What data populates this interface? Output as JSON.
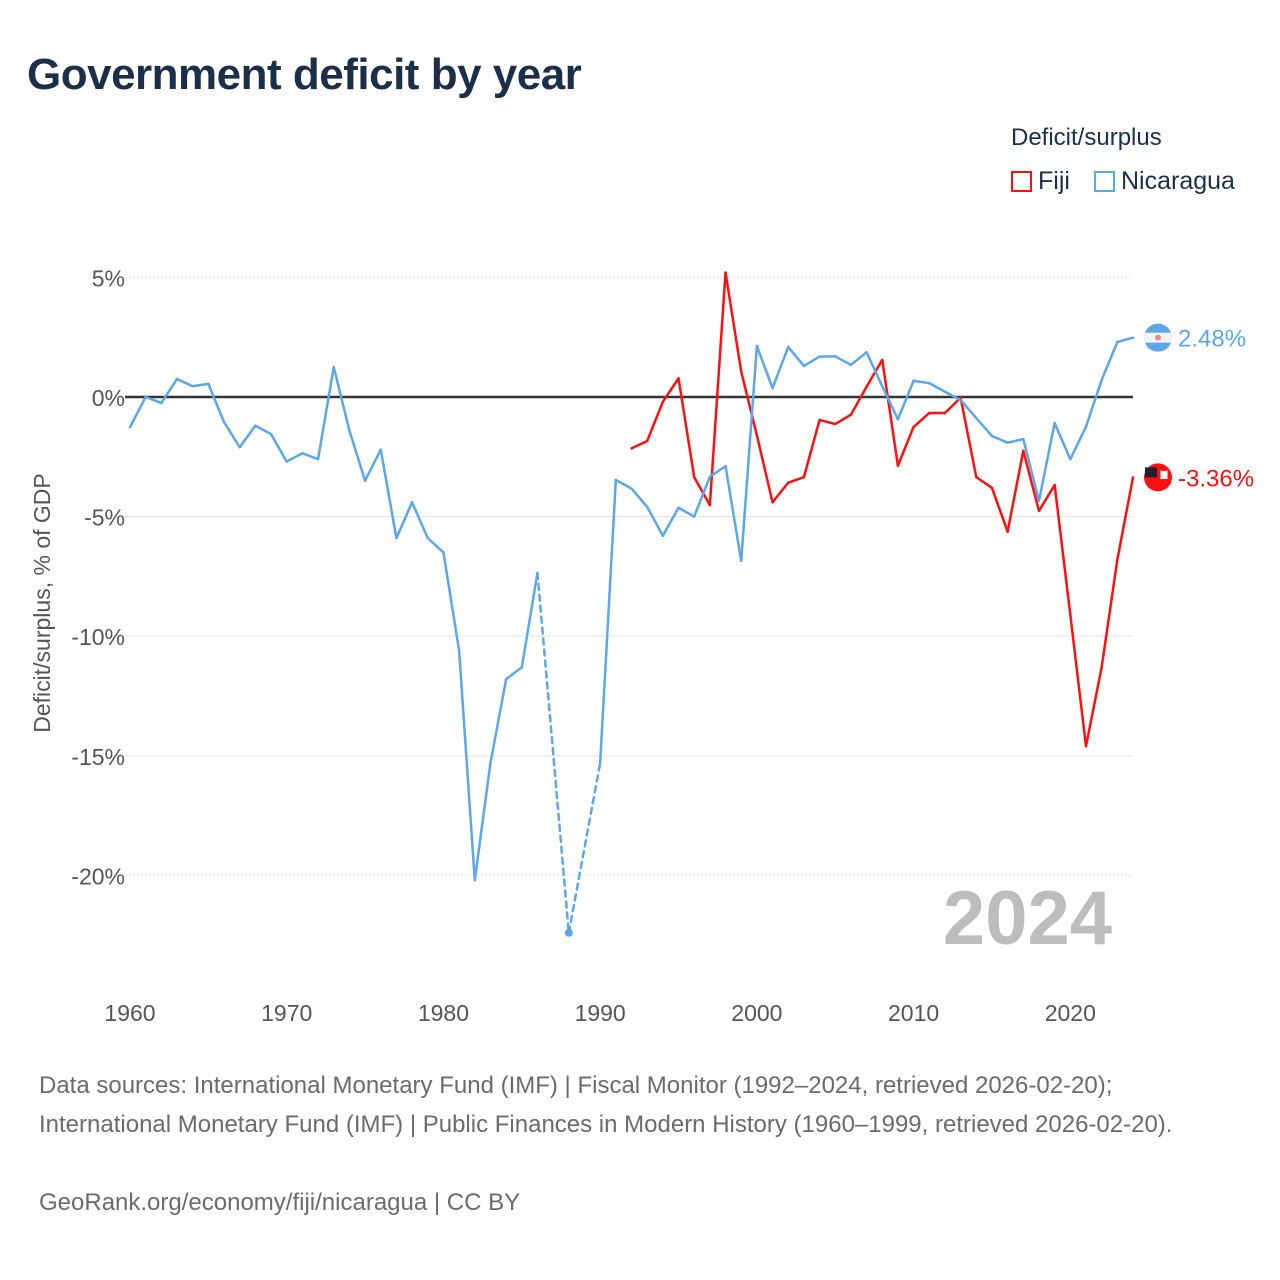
{
  "title": "Government deficit by year",
  "legend": {
    "title": "Deficit/surplus",
    "items": [
      {
        "name": "Fiji",
        "color": "#ff1010"
      },
      {
        "name": "Nicaragua",
        "color": "#5ca6ea"
      }
    ]
  },
  "watermark_year": "2024",
  "footer": {
    "sources": "Data sources: International Monetary Fund (IMF) | Fiscal Monitor (1992–2024, retrieved 2026-02-20); International Monetary Fund (IMF) | Public Finances in Modern History (1960–1999, retrieved 2026-02-20).",
    "credit": "GeoRank.org/economy/fiji/nicaragua | CC BY"
  },
  "chart_data": {
    "type": "line",
    "title": "Government deficit by year",
    "xlabel": "",
    "ylabel": "Deficit/surplus, % of GDP",
    "xlim": [
      1960,
      2024
    ],
    "ylim": [
      -24,
      5.5
    ],
    "x_ticks": [
      "1960",
      "1970",
      "1980",
      "1990",
      "2000",
      "2010",
      "2020"
    ],
    "y_ticks": [
      {
        "v": 5,
        "label": "5%"
      },
      {
        "v": 0,
        "label": "0%"
      },
      {
        "v": -5,
        "label": "-5%"
      },
      {
        "v": -10,
        "label": "-10%"
      },
      {
        "v": -15,
        "label": "-15%"
      },
      {
        "v": -20,
        "label": "-20%"
      }
    ],
    "grid": true,
    "legend_position": "top-right",
    "series": [
      {
        "name": "Fiji",
        "color": "#ff1010",
        "end_label": "-3.36%",
        "x": [
          1992,
          1993,
          1994,
          1995,
          1996,
          1997,
          1998,
          1999,
          2000,
          2001,
          2002,
          2003,
          2004,
          2005,
          2006,
          2007,
          2008,
          2009,
          2010,
          2011,
          2012,
          2013,
          2014,
          2015,
          2016,
          2017,
          2018,
          2019,
          2020,
          2021,
          2022,
          2023,
          2024
        ],
        "y": [
          -2.15,
          -1.84,
          -0.2,
          0.78,
          -3.35,
          -4.52,
          5.2,
          1.06,
          -1.6,
          -4.4,
          -3.58,
          -3.35,
          -0.96,
          -1.13,
          -0.74,
          0.43,
          1.55,
          -2.87,
          -1.25,
          -0.67,
          -0.67,
          -0.03,
          -3.35,
          -3.8,
          -5.63,
          -2.25,
          -4.76,
          -3.68,
          -9.1,
          -14.6,
          -11.3,
          -6.8,
          -3.36
        ]
      },
      {
        "name": "Nicaragua",
        "color": "#5ca6ea",
        "end_label": "2.48%",
        "x": [
          1960,
          1961,
          1962,
          1963,
          1964,
          1965,
          1966,
          1967,
          1968,
          1969,
          1970,
          1971,
          1972,
          1973,
          1974,
          1975,
          1976,
          1977,
          1978,
          1979,
          1980,
          1981,
          1982,
          1983,
          1984,
          1985,
          1986,
          1988,
          1990,
          1991,
          1992,
          1993,
          1994,
          1995,
          1996,
          1997,
          1998,
          1999,
          2000,
          2001,
          2002,
          2003,
          2004,
          2005,
          2006,
          2007,
          2008,
          2009,
          2010,
          2011,
          2012,
          2013,
          2014,
          2015,
          2016,
          2017,
          2018,
          2019,
          2020,
          2021,
          2022,
          2023,
          2024
        ],
        "y": [
          -1.26,
          0,
          -0.25,
          0.75,
          0.45,
          0.55,
          -1.05,
          -2.1,
          -1.2,
          -1.55,
          -2.7,
          -2.35,
          -2.6,
          1.25,
          -1.4,
          -3.5,
          -2.2,
          -5.9,
          -4.4,
          -5.9,
          -6.5,
          -10.6,
          -20.2,
          -15.3,
          -11.8,
          -11.3,
          -7.35,
          -22.4,
          -15.3,
          -3.47,
          -3.83,
          -4.59,
          -5.8,
          -4.63,
          -5.0,
          -3.33,
          -2.89,
          -6.85,
          2.13,
          0.37,
          2.09,
          1.3,
          1.69,
          1.7,
          1.34,
          1.87,
          0.45,
          -0.93,
          0.68,
          0.58,
          0.22,
          -0.13,
          -0.88,
          -1.63,
          -1.91,
          -1.76,
          -4.34,
          -1.09,
          -2.6,
          -1.24,
          0.71,
          2.3,
          2.48
        ]
      }
    ]
  }
}
